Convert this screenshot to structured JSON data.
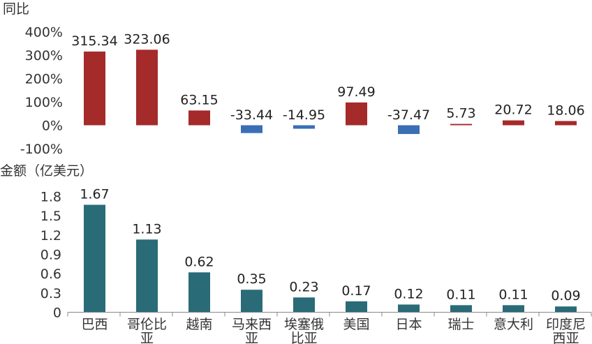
{
  "chart_data": [
    {
      "type": "bar",
      "ylabel": "同比",
      "categories": [
        "巴西",
        "哥伦比亚",
        "越南",
        "马来西亚",
        "埃塞俄比亚",
        "美国",
        "日本",
        "瑞士",
        "意大利",
        "印度尼西亚"
      ],
      "values": [
        315.34,
        323.06,
        63.15,
        -33.44,
        -14.95,
        97.49,
        -37.47,
        5.73,
        20.72,
        18.06
      ],
      "value_labels": [
        "315.34",
        "323.06",
        "63.15",
        "-33.44",
        "-14.95",
        "97.49",
        "-37.47",
        "5.73",
        "20.72",
        "18.06"
      ],
      "yticks": [
        "400%",
        "300%",
        "200%",
        "100%",
        "0%",
        "-100%"
      ],
      "ytick_values": [
        400,
        300,
        200,
        100,
        0,
        -100
      ],
      "ylim": [
        -100,
        400
      ],
      "colors": {
        "positive": "#a52a2a",
        "negative": "#3a6fb5"
      },
      "grid": false,
      "legend": "none"
    },
    {
      "type": "bar",
      "ylabel": "金额（亿美元）",
      "categories": [
        "巴西",
        "哥伦比亚",
        "越南",
        "马来西亚",
        "埃塞俄比亚",
        "美国",
        "日本",
        "瑞士",
        "意大利",
        "印度尼西亚"
      ],
      "category_lines": [
        [
          "巴西"
        ],
        [
          "哥伦比",
          "亚"
        ],
        [
          "越南"
        ],
        [
          "马来西",
          "亚"
        ],
        [
          "埃塞俄",
          "比亚"
        ],
        [
          "美国"
        ],
        [
          "日本"
        ],
        [
          "瑞士"
        ],
        [
          "意大利"
        ],
        [
          "印度尼",
          "西亚"
        ]
      ],
      "values": [
        1.67,
        1.13,
        0.62,
        0.35,
        0.23,
        0.17,
        0.12,
        0.11,
        0.11,
        0.09
      ],
      "value_labels": [
        "1.67",
        "1.13",
        "0.62",
        "0.35",
        "0.23",
        "0.17",
        "0.12",
        "0.11",
        "0.11",
        "0.09"
      ],
      "yticks": [
        "1.8",
        "1.5",
        "1.2",
        "0.9",
        "0.6",
        "0.3",
        "0"
      ],
      "ytick_values": [
        1.8,
        1.5,
        1.2,
        0.9,
        0.6,
        0.3,
        0
      ],
      "ylim": [
        0,
        1.8
      ],
      "colors": {
        "bar": "#2a6b78",
        "axis": "#888888"
      },
      "grid": false,
      "legend": "none"
    }
  ]
}
